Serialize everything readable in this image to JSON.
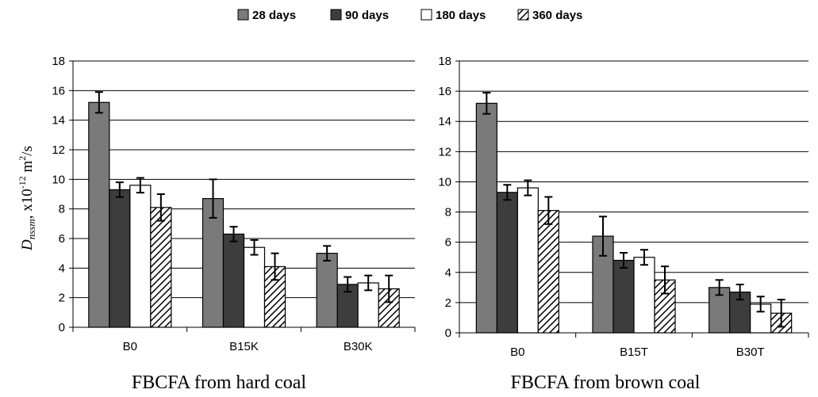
{
  "legend": [
    "28 days",
    "90 days",
    "180 days",
    "360 days"
  ],
  "colors": {
    "28 days": "#7a7a7a",
    "90 days": "#3d3d3d",
    "180 days": "#ffffff",
    "360 days": "hatch"
  },
  "ylabel": {
    "symbol": "D",
    "subscript": "nssm",
    "prefix": ", x10",
    "exp1": "-12",
    "unit": " m",
    "exp2": "2",
    "suffix": "/s"
  },
  "chart_data": [
    {
      "type": "bar",
      "title": "FBCFA from hard coal",
      "categories": [
        "B0",
        "B15K",
        "B30K"
      ],
      "series": [
        {
          "name": "28 days",
          "values": [
            15.2,
            8.7,
            5.0
          ],
          "errors": [
            0.7,
            1.3,
            0.5
          ]
        },
        {
          "name": "90 days",
          "values": [
            9.3,
            6.3,
            2.9
          ],
          "errors": [
            0.5,
            0.5,
            0.5
          ]
        },
        {
          "name": "180 days",
          "values": [
            9.6,
            5.4,
            3.0
          ],
          "errors": [
            0.5,
            0.5,
            0.5
          ]
        },
        {
          "name": "360 days",
          "values": [
            8.1,
            4.1,
            2.6
          ],
          "errors": [
            0.9,
            0.9,
            0.9
          ]
        }
      ],
      "ylim": [
        0,
        18
      ],
      "yticks": [
        0,
        2,
        4,
        6,
        8,
        10,
        12,
        14,
        16,
        18
      ],
      "grid": true
    },
    {
      "type": "bar",
      "title": "FBCFA from brown coal",
      "categories": [
        "B0",
        "B15T",
        "B30T"
      ],
      "series": [
        {
          "name": "28 days",
          "values": [
            15.2,
            6.4,
            3.0
          ],
          "errors": [
            0.7,
            1.3,
            0.5
          ]
        },
        {
          "name": "90 days",
          "values": [
            9.3,
            4.8,
            2.7
          ],
          "errors": [
            0.5,
            0.5,
            0.5
          ]
        },
        {
          "name": "180 days",
          "values": [
            9.6,
            5.0,
            1.9
          ],
          "errors": [
            0.5,
            0.5,
            0.5
          ]
        },
        {
          "name": "360 days",
          "values": [
            8.1,
            3.5,
            1.3
          ],
          "errors": [
            0.9,
            0.9,
            0.9
          ]
        }
      ],
      "ylim": [
        0,
        18
      ],
      "yticks": [
        0,
        2,
        4,
        6,
        8,
        10,
        12,
        14,
        16,
        18
      ],
      "grid": true
    }
  ]
}
